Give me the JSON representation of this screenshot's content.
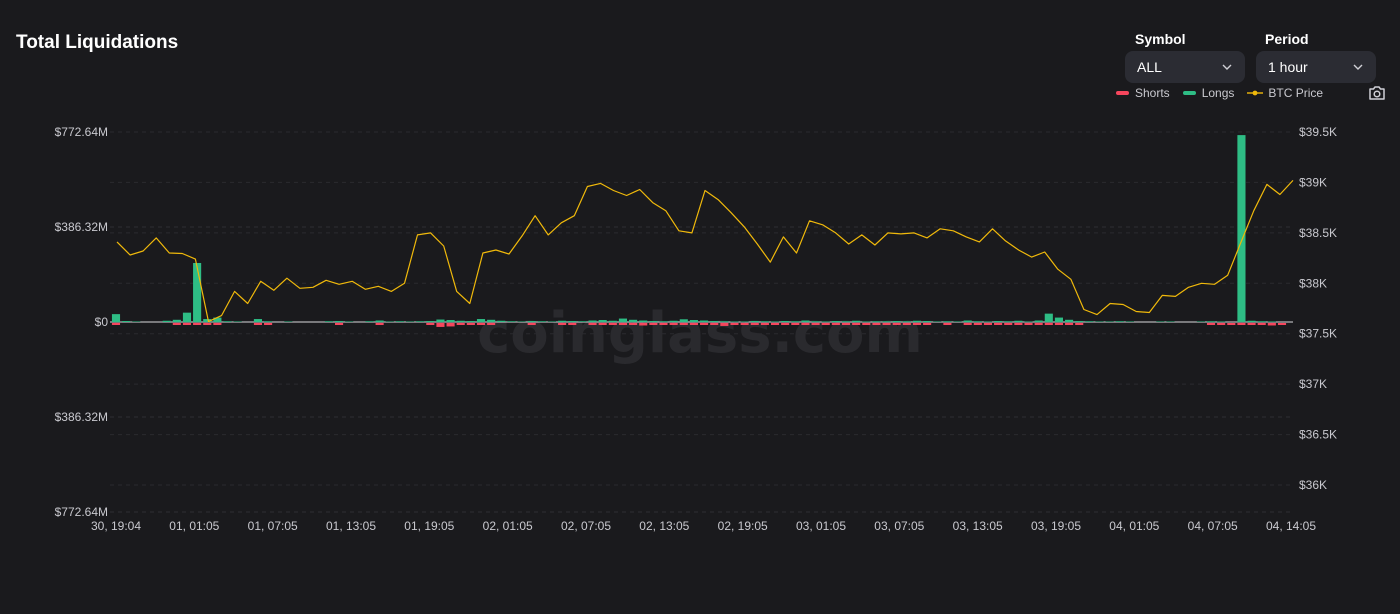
{
  "header": {
    "title": "Total Liquidations"
  },
  "controls": {
    "symbol": {
      "label": "Symbol",
      "value": "ALL"
    },
    "period": {
      "label": "Period",
      "value": "1 hour"
    }
  },
  "legend": {
    "shorts": {
      "label": "Shorts",
      "color": "#f6465d"
    },
    "longs": {
      "label": "Longs",
      "color": "#2ebd85"
    },
    "price": {
      "label": "BTC Price",
      "color": "#f0b90b"
    }
  },
  "icons": {
    "camera": "camera-icon",
    "chevron": "chevron-down-icon"
  },
  "watermark": "coinglass.com",
  "chart_data": {
    "type": "bar",
    "x_tick_labels": [
      "30, 19:04",
      "01, 01:05",
      "01, 07:05",
      "01, 13:05",
      "01, 19:05",
      "02, 01:05",
      "02, 07:05",
      "02, 13:05",
      "02, 19:05",
      "03, 01:05",
      "03, 07:05",
      "03, 13:05",
      "03, 19:05",
      "04, 01:05",
      "04, 07:05",
      "04, 14:05"
    ],
    "y_left": {
      "ticks": [
        "$772.64M",
        "$386.32M",
        "$0",
        "$386.32M",
        "$772.64M"
      ],
      "range_millions": [
        -772.64,
        772.64
      ]
    },
    "y_right": {
      "ticks": [
        "$39.5K",
        "$39K",
        "$38.5K",
        "$38K",
        "$37.5K",
        "$37K",
        "$36.5K",
        "$36K"
      ],
      "range": [
        36000,
        39500
      ]
    },
    "grid": true,
    "legend_position": "top-right",
    "series": [
      {
        "name": "Longs",
        "unit": "millions USD",
        "values": [
          32,
          4,
          2,
          0,
          0,
          5,
          9,
          38,
          240,
          12,
          18,
          3,
          2,
          0,
          12,
          3,
          1,
          2,
          0,
          1,
          0,
          3,
          4,
          2,
          1,
          3,
          6,
          2,
          3,
          2,
          3,
          4,
          10,
          8,
          5,
          4,
          12,
          9,
          5,
          3,
          2,
          4,
          3,
          2,
          5,
          4,
          3,
          6,
          8,
          5,
          14,
          9,
          6,
          4,
          3,
          5,
          11,
          8,
          6,
          4,
          3,
          2,
          2,
          4,
          3,
          2,
          4,
          3,
          6,
          3,
          2,
          4,
          3,
          5,
          2,
          3,
          3,
          4,
          3,
          5,
          4,
          2,
          3,
          2,
          6,
          3,
          2,
          4,
          3,
          5,
          2,
          6,
          34,
          18,
          9,
          4,
          3,
          2,
          2,
          3,
          2,
          1,
          1,
          2,
          2,
          1,
          1,
          2,
          3,
          2,
          1,
          760,
          5,
          3,
          2,
          1
        ]
      },
      {
        "name": "Shorts",
        "unit": "millions USD",
        "values": [
          2,
          1,
          1,
          0,
          0,
          1,
          2,
          4,
          6,
          3,
          2,
          1,
          1,
          0,
          6,
          2,
          0,
          1,
          0,
          0,
          0,
          1,
          2,
          1,
          0,
          1,
          3,
          1,
          1,
          1,
          1,
          2,
          16,
          14,
          4,
          2,
          3,
          2,
          1,
          1,
          1,
          2,
          1,
          1,
          2,
          2,
          1,
          4,
          6,
          2,
          3,
          4,
          10,
          8,
          6,
          4,
          3,
          3,
          2,
          4,
          12,
          8,
          6,
          4,
          3,
          3,
          2,
          2,
          6,
          3,
          2,
          4,
          6,
          8,
          5,
          3,
          3,
          4,
          2,
          5,
          3,
          1,
          2,
          1,
          4,
          2,
          3,
          2,
          2,
          4,
          2,
          5,
          4,
          6,
          3,
          2,
          1,
          1,
          1,
          1,
          1,
          1,
          1,
          1,
          1,
          1,
          1,
          1,
          2,
          2,
          3,
          6,
          8,
          4,
          10,
          3
        ]
      },
      {
        "name": "BTC Price",
        "unit": "USD",
        "values": [
          38410,
          38280,
          38320,
          38450,
          38300,
          38295,
          38240,
          37620,
          37680,
          37920,
          37800,
          38020,
          37930,
          38050,
          37950,
          37960,
          38030,
          37990,
          38020,
          37940,
          37970,
          37920,
          38000,
          38480,
          38500,
          38370,
          37920,
          37800,
          38300,
          38330,
          38290,
          38470,
          38670,
          38480,
          38600,
          38670,
          38960,
          38990,
          38920,
          38870,
          38930,
          38800,
          38720,
          38520,
          38500,
          38920,
          38830,
          38700,
          38560,
          38390,
          38210,
          38460,
          38300,
          38620,
          38580,
          38500,
          38390,
          38480,
          38380,
          38500,
          38490,
          38500,
          38450,
          38540,
          38520,
          38460,
          38410,
          38540,
          38420,
          38330,
          38260,
          38310,
          38140,
          38040,
          37740,
          37690,
          37800,
          37790,
          37720,
          37710,
          37880,
          37870,
          37960,
          38000,
          37990,
          38080,
          38400,
          38720,
          38980,
          38880,
          39020
        ]
      }
    ]
  }
}
